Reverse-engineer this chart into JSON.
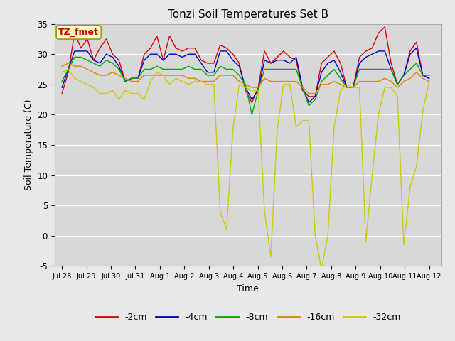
{
  "title": "Tonzi Soil Temperatures Set B",
  "xlabel": "Time",
  "ylabel": "Soil Temperature (C)",
  "ylim": [
    -5,
    35
  ],
  "yticks": [
    -5,
    0,
    5,
    10,
    15,
    20,
    25,
    30,
    35
  ],
  "annotation_label": "TZ_fmet",
  "annotation_color": "#cc0000",
  "annotation_bg": "#ffffcc",
  "annotation_border": "#999900",
  "colors": {
    "-2cm": "#dd0000",
    "-4cm": "#0000cc",
    "-8cm": "#00aa00",
    "-16cm": "#dd8800",
    "-32cm": "#cccc00"
  },
  "legend_labels": [
    "-2cm",
    "-4cm",
    "-8cm",
    "-16cm",
    "-32cm"
  ],
  "background_color": "#d8d8d8",
  "grid_color": "#ffffff",
  "fig_bg": "#e8e8e8",
  "xtick_labels": [
    "Jul 28",
    "Jul 29",
    "Jul 30",
    "Jul 31",
    "Aug 1",
    "Aug 2",
    "Aug 3",
    "Aug 4",
    "Aug 5",
    "Aug 6",
    "Aug 7",
    "Aug 8",
    "Aug 9",
    "Aug 10",
    "Aug 11",
    "Aug 12"
  ],
  "series": {
    "-2cm": [
      23.5,
      27.0,
      33.5,
      31.0,
      32.5,
      29.0,
      31.0,
      32.5,
      30.0,
      29.0,
      25.5,
      26.0,
      26.0,
      30.0,
      31.0,
      33.0,
      29.0,
      33.0,
      31.0,
      30.5,
      31.0,
      31.0,
      29.0,
      28.5,
      28.5,
      31.5,
      31.0,
      30.0,
      28.5,
      24.0,
      22.0,
      24.5,
      30.5,
      28.5,
      29.5,
      30.5,
      29.5,
      29.0,
      24.0,
      23.0,
      23.0,
      28.5,
      29.5,
      30.5,
      28.5,
      24.5,
      24.5,
      29.5,
      30.5,
      31.0,
      33.5,
      34.5,
      28.5,
      25.0,
      26.5,
      30.5,
      32.0,
      26.5,
      26.0
    ],
    "-4cm": [
      24.5,
      27.5,
      30.5,
      30.5,
      30.5,
      29.0,
      28.5,
      30.0,
      29.5,
      28.0,
      25.5,
      26.0,
      26.0,
      29.0,
      30.0,
      30.0,
      29.0,
      30.0,
      30.0,
      29.5,
      30.0,
      30.0,
      28.5,
      27.0,
      27.0,
      30.5,
      30.5,
      29.0,
      28.0,
      24.5,
      22.5,
      24.0,
      29.0,
      28.5,
      29.0,
      29.0,
      28.5,
      29.5,
      24.5,
      22.0,
      23.0,
      27.0,
      28.5,
      29.0,
      27.0,
      24.5,
      24.5,
      28.5,
      29.5,
      30.0,
      30.5,
      30.5,
      27.5,
      25.0,
      26.5,
      30.0,
      31.0,
      26.5,
      26.0
    ],
    "-8cm": [
      25.5,
      27.5,
      29.5,
      29.5,
      29.0,
      28.5,
      28.0,
      29.0,
      28.5,
      27.5,
      25.5,
      26.0,
      26.0,
      27.5,
      27.5,
      28.0,
      27.5,
      27.5,
      27.5,
      27.5,
      28.0,
      27.5,
      27.5,
      26.5,
      26.5,
      28.0,
      27.5,
      27.5,
      26.5,
      25.0,
      20.0,
      24.0,
      27.5,
      27.5,
      27.5,
      27.5,
      27.5,
      27.5,
      24.5,
      21.5,
      22.5,
      25.5,
      26.5,
      27.5,
      26.0,
      24.5,
      24.5,
      27.5,
      27.5,
      27.5,
      27.5,
      27.5,
      27.5,
      25.0,
      26.5,
      27.5,
      28.5,
      26.5,
      26.5
    ],
    "-16cm": [
      28.0,
      28.5,
      28.0,
      28.0,
      27.5,
      27.0,
      26.5,
      26.5,
      27.0,
      26.5,
      26.0,
      25.5,
      25.5,
      26.5,
      26.5,
      26.5,
      26.5,
      26.5,
      26.5,
      26.5,
      26.0,
      26.0,
      25.5,
      25.5,
      25.5,
      26.5,
      26.5,
      26.5,
      25.5,
      25.0,
      24.5,
      24.5,
      26.0,
      25.5,
      25.5,
      25.5,
      25.5,
      25.5,
      24.5,
      23.5,
      23.5,
      25.0,
      25.0,
      25.5,
      25.0,
      24.5,
      24.5,
      25.5,
      25.5,
      25.5,
      25.5,
      26.0,
      25.5,
      24.5,
      25.5,
      26.0,
      27.0,
      26.0,
      25.5
    ],
    "-32cm": [
      27.0,
      27.5,
      26.0,
      25.5,
      25.0,
      24.5,
      23.5,
      23.5,
      24.0,
      22.5,
      24.0,
      23.5,
      23.5,
      22.5,
      25.5,
      27.0,
      26.5,
      25.0,
      26.0,
      25.5,
      25.0,
      25.5,
      25.5,
      25.0,
      25.0,
      4.0,
      1.0,
      17.5,
      25.0,
      24.5,
      24.0,
      24.0,
      4.0,
      -3.5,
      17.5,
      25.0,
      25.0,
      18.0,
      19.0,
      19.0,
      0.0,
      -5.5,
      0.0,
      18.0,
      24.0,
      25.0,
      24.5,
      24.5,
      -1.0,
      10.0,
      20.0,
      24.5,
      24.5,
      23.0,
      -1.5,
      8.0,
      11.5,
      20.5,
      25.5
    ]
  }
}
